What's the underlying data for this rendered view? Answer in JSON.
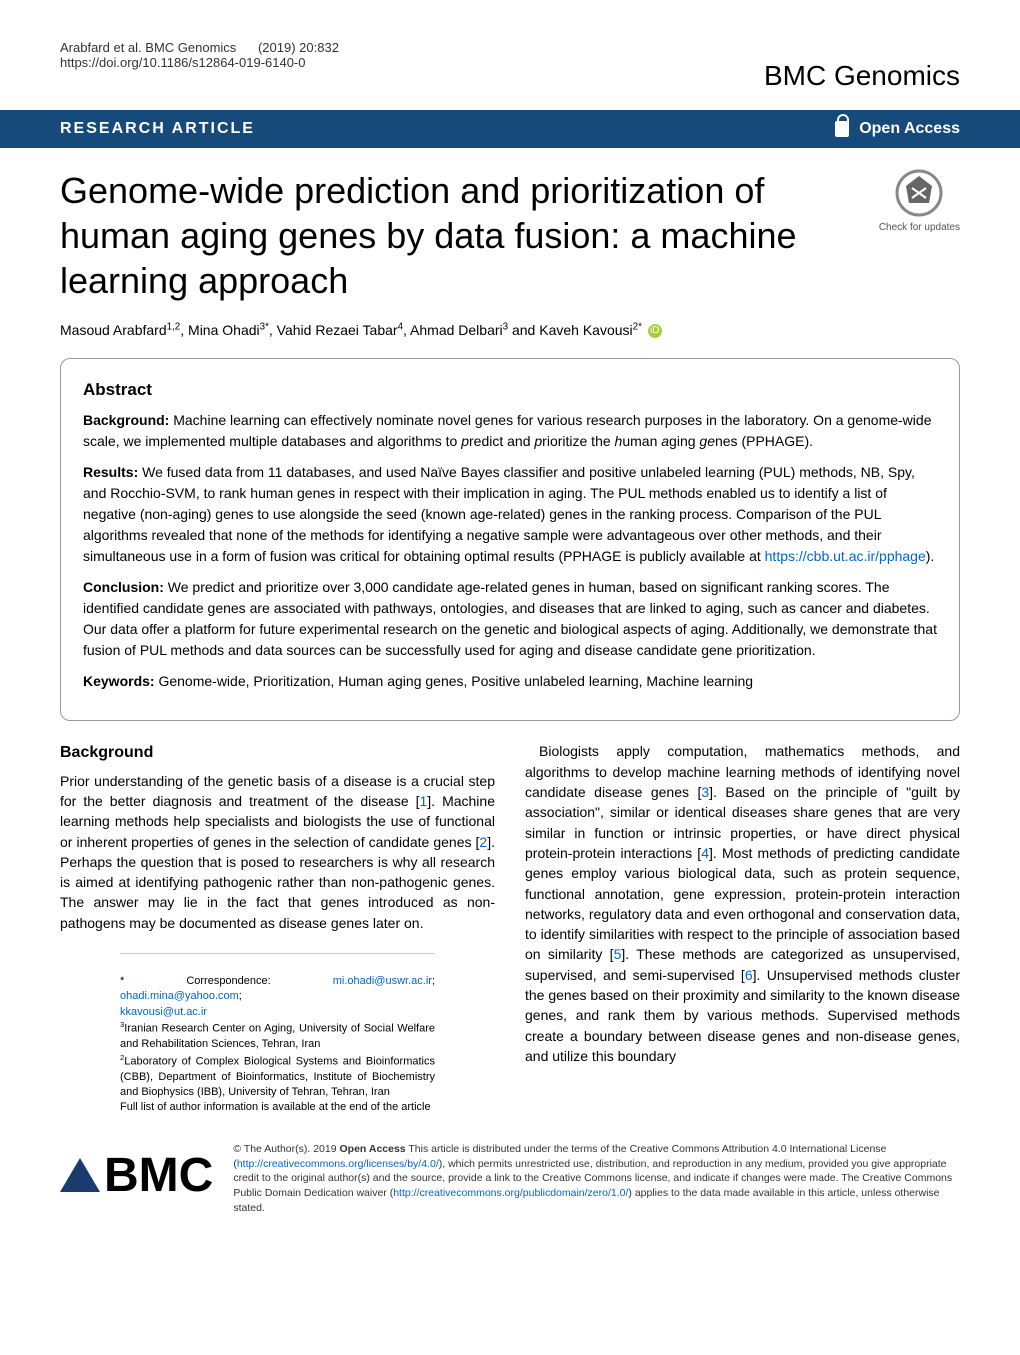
{
  "header": {
    "citation_authors": "Arabfard et al. BMC Genomics",
    "citation_issue": "(2019) 20:832",
    "doi": "https://doi.org/10.1186/s12864-019-6140-0",
    "journal": "BMC Genomics"
  },
  "bluebar": {
    "left": "RESEARCH ARTICLE",
    "right": "Open Access"
  },
  "title": "Genome-wide prediction and prioritization of human aging genes by data fusion: a machine learning approach",
  "check_updates": "Check for updates",
  "authors_html": "Masoud Arabfard<sup>1,2</sup>, Mina Ohadi<sup>3*</sup>, Vahid Rezaei Tabar<sup>4</sup>, Ahmad Delbari<sup>3</sup> and Kaveh Kavousi<sup>2*</sup>",
  "abstract": {
    "heading": "Abstract",
    "background_label": "Background:",
    "background": " Machine learning can effectively nominate novel genes for various research purposes in the laboratory. On a genome-wide scale, we implemented multiple databases and algorithms to predict and prioritize the human aging genes (PPHAGE).",
    "results_label": "Results:",
    "results": " We fused data from 11 databases, and used Naïve Bayes classifier and positive unlabeled learning (PUL) methods, NB, Spy, and Rocchio-SVM, to rank human genes in respect with their implication in aging. The PUL methods enabled us to identify a list of negative (non-aging) genes to use alongside the seed (known age-related) genes in the ranking process. Comparison of the PUL algorithms revealed that none of the methods for identifying a negative sample were advantageous over other methods, and their simultaneous use in a form of fusion was critical for obtaining optimal results (PPHAGE is publicly available at ",
    "results_link": "https://cbb.ut.ac.ir/pphage",
    "results_after": ").",
    "conclusion_label": "Conclusion:",
    "conclusion": " We predict and prioritize over 3,000 candidate age-related genes in human, based on significant ranking scores. The identified candidate genes are associated with pathways, ontologies, and diseases that are linked to aging, such as cancer and diabetes. Our data offer a platform for future experimental research on the genetic and biological aspects of aging. Additionally, we demonstrate that fusion of PUL methods and data sources can be successfully used for aging and disease candidate gene prioritization.",
    "keywords_label": "Keywords:",
    "keywords": " Genome-wide, Prioritization, Human aging genes, Positive unlabeled learning, Machine learning"
  },
  "body": {
    "heading": "Background",
    "col1_p1a": "Prior understanding of the genetic basis of a disease is a crucial step for the better diagnosis and treatment of the disease [",
    "ref1": "1",
    "col1_p1b": "]. Machine learning methods help specialists and biologists the use of functional or inherent properties of genes in the selection of candidate genes [",
    "ref2": "2",
    "col1_p1c": "]. Perhaps the question that is posed to researchers is why all research is aimed at identifying pathogenic rather than non-pathogenic genes. The answer may lie in the fact that genes introduced as non-pathogens may be documented as disease genes later on.",
    "col2_p1a": "Biologists apply computation, mathematics methods, and algorithms to develop machine learning methods of identifying novel candidate disease genes [",
    "ref3": "3",
    "col2_p1b": "]. Based on the principle of \"guilt by association\", similar or identical diseases share genes that are very similar in function or intrinsic properties, or have direct physical protein-protein interactions [",
    "ref4": "4",
    "col2_p1c": "]. Most methods of predicting candidate genes employ various biological data, such as protein sequence, functional annotation, gene expression, protein-protein interaction networks, regulatory data and even orthogonal and conservation data, to identify similarities with respect to the principle of association based on similarity [",
    "ref5": "5",
    "col2_p1d": "]. These methods are categorized as unsupervised, supervised, and semi-supervised [",
    "ref6": "6",
    "col2_p1e": "]. Unsupervised methods cluster the genes based on their proximity and similarity to the known disease genes, and rank them by various methods. Supervised methods create a boundary between disease genes and non-disease genes, and utilize this boundary"
  },
  "correspondence": {
    "label": "* Correspondence: ",
    "email1": "mi.ohadi@uswr.ac.ir",
    "email2": "ohadi.mina@yahoo.com",
    "email3": "kkavousi@ut.ac.ir",
    "aff3": "Iranian Research Center on Aging, University of Social Welfare and Rehabilitation Sciences, Tehran, Iran",
    "aff2": "Laboratory of Complex Biological Systems and Bioinformatics (CBB), Department of Bioinformatics, Institute of Biochemistry and Biophysics (IBB), University of Tehran, Tehran, Iran",
    "full_list": "Full list of author information is available at the end of the article"
  },
  "footer": {
    "logo_text": "BMC",
    "license_a": "© The Author(s). 2019 ",
    "open_access": "Open Access",
    "license_b": " This article is distributed under the terms of the Creative Commons Attribution 4.0 International License (",
    "cc_link": "http://creativecommons.org/licenses/by/4.0/",
    "license_c": "), which permits unrestricted use, distribution, and reproduction in any medium, provided you give appropriate credit to the original author(s) and the source, provide a link to the Creative Commons license, and indicate if changes were made. The Creative Commons Public Domain Dedication waiver (",
    "pd_link": "http://creativecommons.org/publicdomain/zero/1.0/",
    "license_d": ") applies to the data made available in this article, unless otherwise stated."
  },
  "colors": {
    "blue_bar": "#154a7a",
    "link": "#0066cc",
    "orcid": "#a6ce39",
    "text": "#000000",
    "background": "#ffffff",
    "border": "#999999"
  }
}
